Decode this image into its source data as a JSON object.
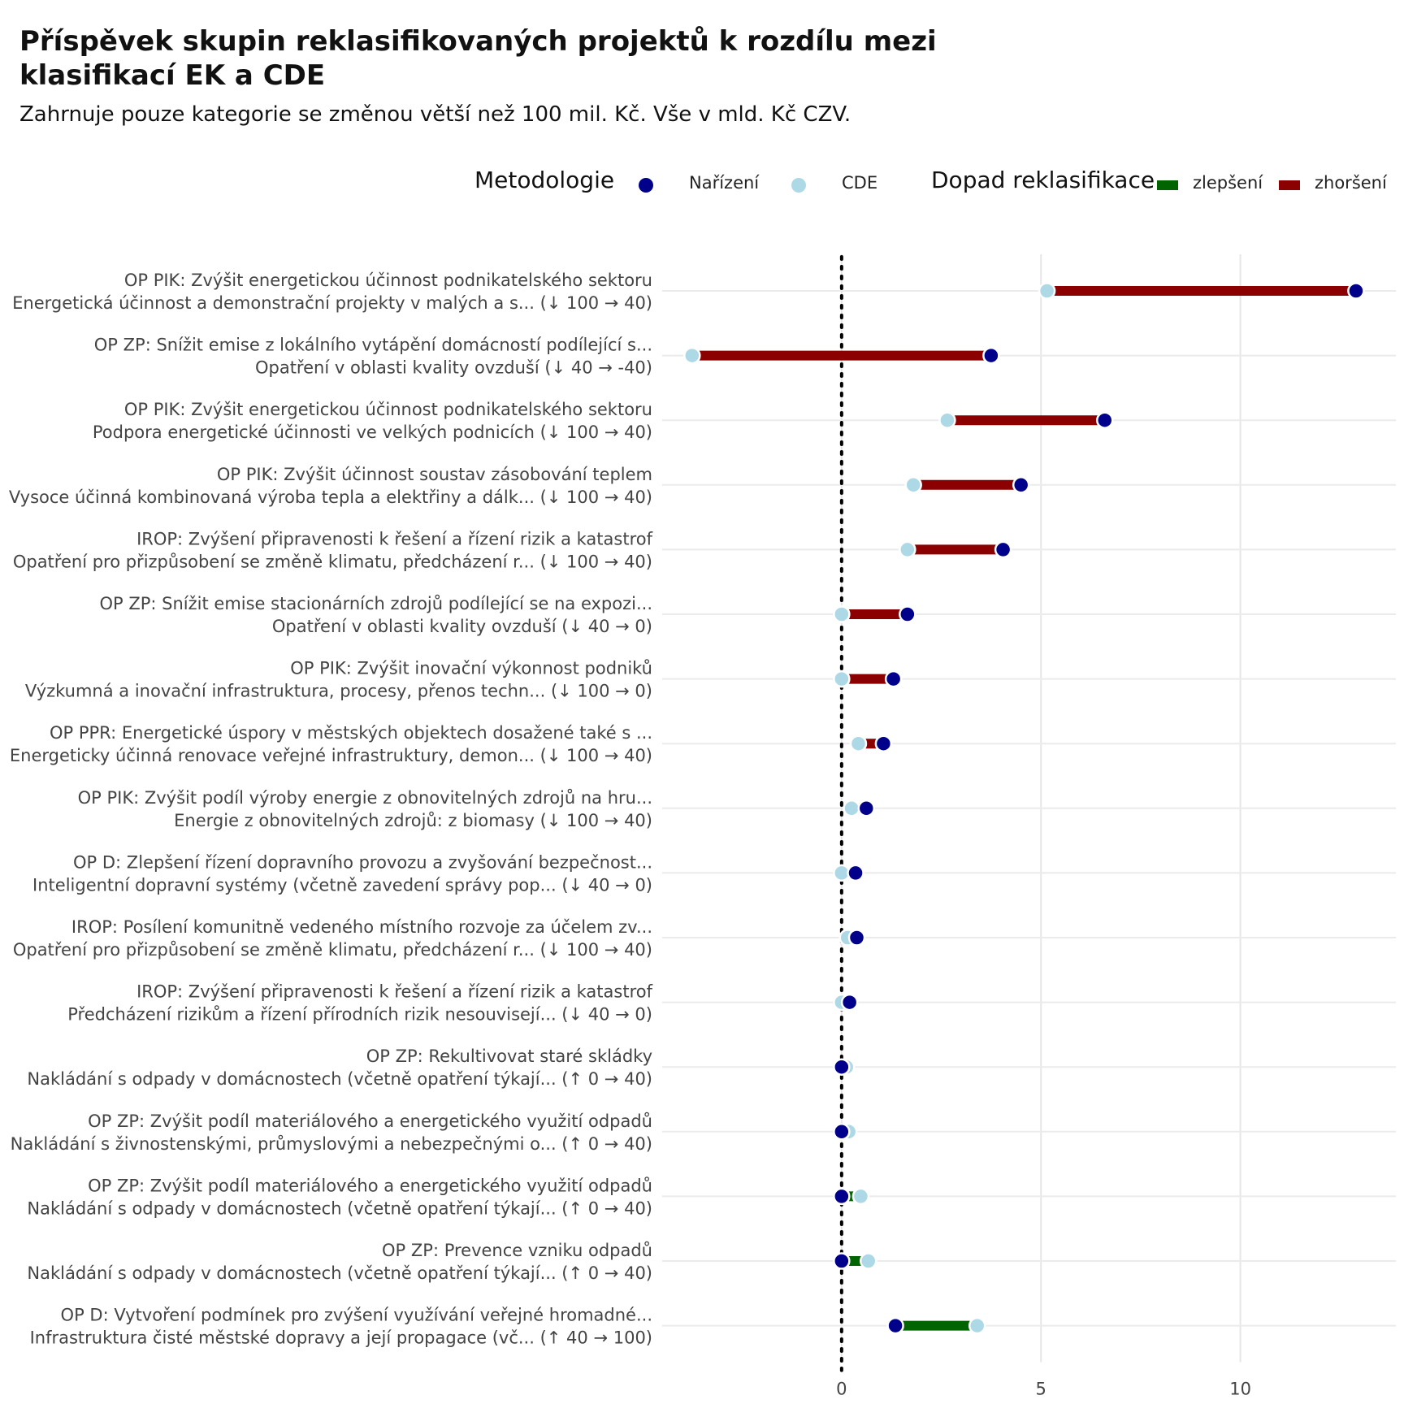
{
  "title": "Příspěvek skupin reklasifikovaných projektů k rozdílu mezi klasifikací EK a CDE",
  "subtitle": "Zahrnuje pouze kategorie se změnou větší než 100 mil. Kč. Vše v mld. Kč CZV.",
  "legend": {
    "method_title": "Metodologie",
    "method_items": [
      {
        "label": "Nařízení",
        "color": "#00008B"
      },
      {
        "label": "CDE",
        "color": "#ADD8E6"
      }
    ],
    "impact_title": "Dopad reklasifikace",
    "impact_items": [
      {
        "label": "zlepšení",
        "color": "#006400"
      },
      {
        "label": "zhoršení",
        "color": "#8B0000"
      }
    ]
  },
  "chart_data": {
    "type": "dumbbell",
    "xlim": [
      -4.5,
      13.9
    ],
    "x_ticks": [
      0,
      5,
      10
    ],
    "reference_line_x": 0,
    "grid": true,
    "series": [
      {
        "name": "Nařízení",
        "color": "#00008B"
      },
      {
        "name": "CDE",
        "color": "#ADD8E6"
      }
    ],
    "rows": [
      {
        "line1": "OP PIK: Zvýšit energetickou účinnost podnikatelského sektoru",
        "line2": "Energetická účinnost a demonstrační projekty v malých a s... (↓ 100 → 40)",
        "narizeni": 12.9,
        "cde": 5.15,
        "impact": "zhoršení"
      },
      {
        "line1": "OP ZP: Snížit emise z lokálního vytápění domácností podílející s...",
        "line2": "Opatření v oblasti kvality ovzduší (↓ 40 → -40)",
        "narizeni": 3.75,
        "cde": -3.75,
        "impact": "zhoršení"
      },
      {
        "line1": "OP PIK: Zvýšit energetickou účinnost podnikatelského sektoru",
        "line2": "Podpora energetické účinnosti ve velkých podnicích (↓ 100 → 40)",
        "narizeni": 6.6,
        "cde": 2.65,
        "impact": "zhoršení"
      },
      {
        "line1": "OP PIK: Zvýšit účinnost soustav zásobování teplem",
        "line2": "Vysoce účinná kombinovaná výroba tepla a elektřiny a dálk... (↓ 100 → 40)",
        "narizeni": 4.5,
        "cde": 1.8,
        "impact": "zhoršení"
      },
      {
        "line1": "IROP: Zvýšení připravenosti k řešení a řízení rizik a katastrof",
        "line2": "Opatření pro přizpůsobení se změně klimatu, předcházení r... (↓ 100 → 40)",
        "narizeni": 4.05,
        "cde": 1.65,
        "impact": "zhoršení"
      },
      {
        "line1": "OP ZP: Snížit emise stacionárních zdrojů podílející se na expozi...",
        "line2": "Opatření v oblasti kvality ovzduší (↓ 40 → 0)",
        "narizeni": 1.65,
        "cde": 0.0,
        "impact": "zhoršení"
      },
      {
        "line1": "OP PIK: Zvýšit inovační výkonnost podniků",
        "line2": "Výzkumná a inovační infrastruktura, procesy, přenos techn... (↓ 100 → 0)",
        "narizeni": 1.3,
        "cde": 0.0,
        "impact": "zhoršení"
      },
      {
        "line1": "OP PPR: Energetické úspory v městských objektech dosažené také s ...",
        "line2": "Energeticky účinná renovace veřejné infrastruktury, demon... (↓ 100 → 40)",
        "narizeni": 1.05,
        "cde": 0.42,
        "impact": "zhoršení"
      },
      {
        "line1": "OP PIK: Zvýšit podíl výroby energie z obnovitelných zdrojů na hru...",
        "line2": "Energie z obnovitelných zdrojů: z biomasy (↓ 100 → 40)",
        "narizeni": 0.62,
        "cde": 0.25,
        "impact": "zhoršení"
      },
      {
        "line1": "OP D: Zlepšení řízení dopravního provozu a zvyšování bezpečnost...",
        "line2": "Inteligentní dopravní systémy (včetně zavedení správy pop... (↓ 40 → 0)",
        "narizeni": 0.35,
        "cde": 0.0,
        "impact": "zhoršení"
      },
      {
        "line1": "IROP: Posílení komunitně vedeného místního rozvoje za účelem zv...",
        "line2": "Opatření pro přizpůsobení se změně klimatu, předcházení r... (↓ 100 → 40)",
        "narizeni": 0.38,
        "cde": 0.15,
        "impact": "zhoršení"
      },
      {
        "line1": "IROP: Zvýšení připravenosti k řešení a řízení rizik a katastrof",
        "line2": "Předcházení rizikům a řízení přírodních rizik nesouvisejí... (↓ 40 → 0)",
        "narizeni": 0.2,
        "cde": 0.0,
        "impact": "zhoršení"
      },
      {
        "line1": "OP ZP: Rekultivovat staré skládky",
        "line2": "Nakládání s odpady v domácnostech (včetně opatření týkají... (↑ 0 → 40)",
        "narizeni": 0.0,
        "cde": 0.12,
        "impact": "zlepšení"
      },
      {
        "line1": "OP ZP: Zvýšit podíl materiálového a energetického využití odpadů",
        "line2": "Nakládání s živnostenskými, průmyslovými a nebezpečnými o... (↑ 0 → 40)",
        "narizeni": 0.0,
        "cde": 0.18,
        "impact": "zlepšení"
      },
      {
        "line1": "OP ZP: Zvýšit podíl materiálového a energetického využití odpadů",
        "line2": "Nakládání s odpady v domácnostech (včetně opatření týkají... (↑ 0 → 40)",
        "narizeni": 0.0,
        "cde": 0.48,
        "impact": "zlepšení"
      },
      {
        "line1": "OP ZP: Prevence vzniku odpadů",
        "line2": "Nakládání s odpady v domácnostech (včetně opatření týkají... (↑ 0 → 40)",
        "narizeni": 0.0,
        "cde": 0.67,
        "impact": "zlepšení"
      },
      {
        "line1": "OP D: Vytvoření podmínek pro zvýšení využívání veřejné hromadné...",
        "line2": "Infrastruktura čisté městské dopravy a její propagace (vč... (↑ 40 → 100)",
        "narizeni": 1.35,
        "cde": 3.4,
        "impact": "zlepšení"
      }
    ]
  }
}
